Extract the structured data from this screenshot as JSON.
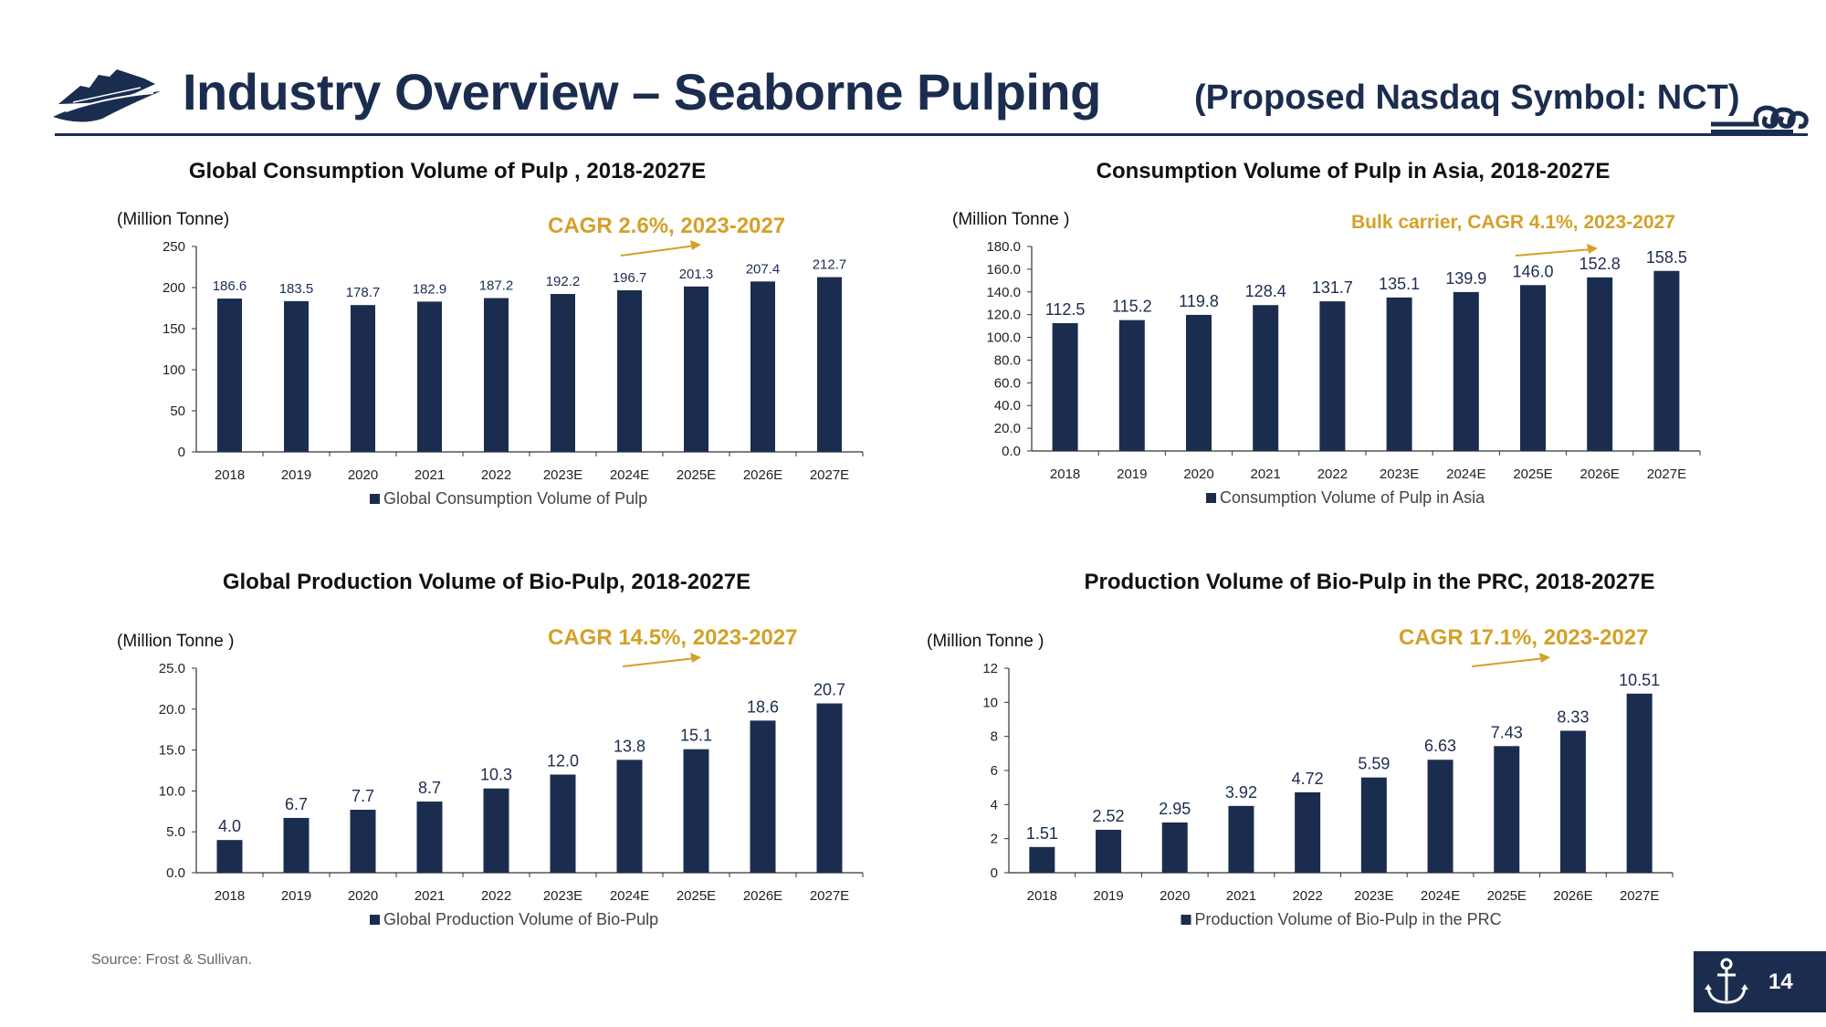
{
  "header": {
    "title": "Industry Overview – Seaborne Pulping",
    "symbol": "(Proposed Nasdaq Symbol:  NCT)"
  },
  "footer": {
    "source": "Source: Frost & Sullivan.",
    "page_number": "14"
  },
  "colors": {
    "bar": "#1b2d4f",
    "cagr": "#d4a028",
    "axis": "#333333"
  },
  "chart_data": [
    {
      "type": "bar",
      "title": "Global Consumption Volume of Pulp , 2018-2027E",
      "unit_label": "(Million Tonne)",
      "cagr": "CAGR 2.6%, 2023-2027",
      "categories": [
        "2018",
        "2019",
        "2020",
        "2021",
        "2022",
        "2023E",
        "2024E",
        "2025E",
        "2026E",
        "2027E"
      ],
      "series": [
        {
          "name": "Global Consumption Volume of Pulp",
          "values": [
            186.6,
            183.5,
            178.7,
            182.9,
            187.2,
            192.2,
            196.7,
            201.3,
            207.4,
            212.7
          ]
        }
      ],
      "value_labels": [
        "186.6",
        "183.5",
        "178.7",
        "182.9",
        "187.2",
        "192.2",
        "196.7",
        "201.3",
        "207.4",
        "212.7"
      ],
      "ylim": [
        0,
        250
      ],
      "yticks": [
        "0",
        "50",
        "100",
        "150",
        "200",
        "250"
      ]
    },
    {
      "type": "bar",
      "title": "Consumption Volume of Pulp in Asia, 2018-2027E",
      "unit_label": "(Million Tonne )",
      "cagr": "Bulk carrier, CAGR 4.1%, 2023-2027",
      "categories": [
        "2018",
        "2019",
        "2020",
        "2021",
        "2022",
        "2023E",
        "2024E",
        "2025E",
        "2026E",
        "2027E"
      ],
      "series": [
        {
          "name": "Consumption Volume of Pulp in Asia",
          "values": [
            112.5,
            115.2,
            119.8,
            128.4,
            131.7,
            135.1,
            139.9,
            146.0,
            152.8,
            158.5
          ]
        }
      ],
      "value_labels": [
        "112.5",
        "115.2",
        "119.8",
        "128.4",
        "131.7",
        "135.1",
        "139.9",
        "146.0",
        "152.8",
        "158.5"
      ],
      "ylim": [
        0,
        180
      ],
      "yticks": [
        "0.0",
        "20.0",
        "40.0",
        "60.0",
        "80.0",
        "100.0",
        "120.0",
        "140.0",
        "160.0",
        "180.0"
      ]
    },
    {
      "type": "bar",
      "title": "Global Production Volume of Bio-Pulp, 2018-2027E",
      "unit_label": "(Million Tonne )",
      "cagr": "CAGR 14.5%, 2023-2027",
      "categories": [
        "2018",
        "2019",
        "2020",
        "2021",
        "2022",
        "2023E",
        "2024E",
        "2025E",
        "2026E",
        "2027E"
      ],
      "series": [
        {
          "name": "Global Production Volume of Bio-Pulp",
          "values": [
            4.0,
            6.7,
            7.7,
            8.7,
            10.3,
            12.0,
            13.8,
            15.1,
            18.6,
            20.7
          ]
        }
      ],
      "value_labels": [
        "4.0",
        "6.7",
        "7.7",
        "8.7",
        "10.3",
        "12.0",
        "13.8",
        "15.1",
        "18.6",
        "20.7"
      ],
      "ylim": [
        0,
        25
      ],
      "yticks": [
        "0.0",
        "5.0",
        "10.0",
        "15.0",
        "20.0",
        "25.0"
      ]
    },
    {
      "type": "bar",
      "title": "Production Volume of Bio-Pulp in the PRC, 2018-2027E",
      "unit_label": "(Million Tonne )",
      "cagr": "CAGR 17.1%, 2023-2027",
      "categories": [
        "2018",
        "2019",
        "2020",
        "2021",
        "2022",
        "2023E",
        "2024E",
        "2025E",
        "2026E",
        "2027E"
      ],
      "series": [
        {
          "name": "Production Volume of Bio-Pulp in the PRC",
          "values": [
            1.51,
            2.52,
            2.95,
            3.92,
            4.72,
            5.59,
            6.63,
            7.43,
            8.33,
            10.51
          ]
        }
      ],
      "value_labels": [
        "1.51",
        "2.52",
        "2.95",
        "3.92",
        "4.72",
        "5.59",
        "6.63",
        "7.43",
        "8.33",
        "10.51"
      ],
      "ylim": [
        0,
        12
      ],
      "yticks": [
        "0",
        "2",
        "4",
        "6",
        "8",
        "10",
        "12"
      ]
    }
  ]
}
